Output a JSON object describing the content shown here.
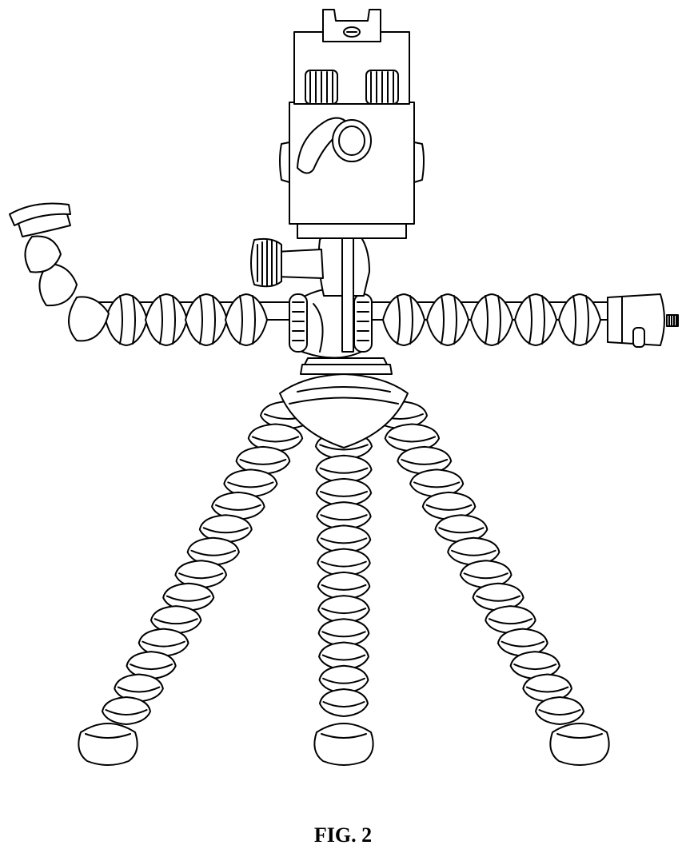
{
  "figure": {
    "label": "FIG. 2",
    "line_color": "#000000",
    "background": "#ffffff"
  }
}
